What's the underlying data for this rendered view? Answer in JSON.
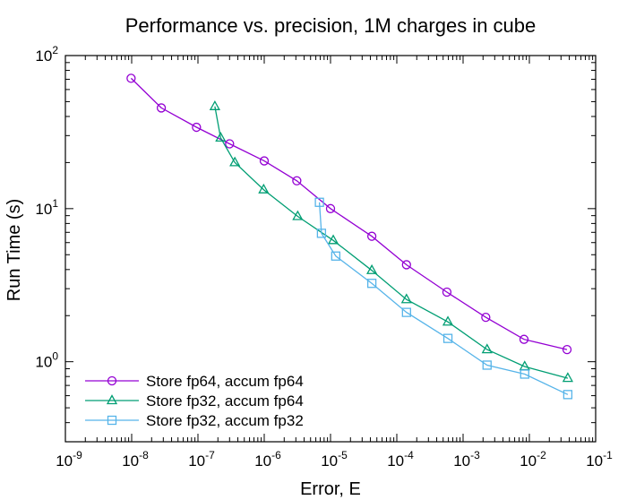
{
  "chart_data": {
    "type": "line",
    "title": "Performance vs. precision, 1M charges in cube",
    "xlabel": "Error, E",
    "ylabel": "Run Time (s)",
    "xscale": "log",
    "yscale": "log",
    "xlim": [
      1e-09,
      0.1
    ],
    "ylim": [
      0.3,
      100
    ],
    "x_ticks": [
      {
        "value": 1e-09,
        "base": "10",
        "exp": "-9"
      },
      {
        "value": 1e-08,
        "base": "10",
        "exp": "-8"
      },
      {
        "value": 1e-07,
        "base": "10",
        "exp": "-7"
      },
      {
        "value": 1e-06,
        "base": "10",
        "exp": "-6"
      },
      {
        "value": 1e-05,
        "base": "10",
        "exp": "-5"
      },
      {
        "value": 0.0001,
        "base": "10",
        "exp": "-4"
      },
      {
        "value": 0.001,
        "base": "10",
        "exp": "-3"
      },
      {
        "value": 0.01,
        "base": "10",
        "exp": "-2"
      },
      {
        "value": 0.1,
        "base": "10",
        "exp": "-1"
      }
    ],
    "y_ticks": [
      {
        "value": 1,
        "base": "10",
        "exp": "0"
      },
      {
        "value": 10,
        "base": "10",
        "exp": "1"
      },
      {
        "value": 100,
        "base": "10",
        "exp": "2"
      }
    ],
    "grid": false,
    "legend_position": "bottom-left",
    "series": [
      {
        "name": "Store fp64, accum fp64",
        "color": "#9400d3",
        "marker": "circle",
        "x": [
          9.8e-09,
          2.8e-08,
          9.5e-08,
          3e-07,
          1e-06,
          3.1e-06,
          1e-05,
          4.2e-05,
          0.00014,
          0.00057,
          0.0022,
          0.0083,
          0.037
        ],
        "y": [
          71,
          45.5,
          34,
          26.5,
          20.5,
          15.2,
          10,
          6.6,
          4.3,
          2.85,
          1.95,
          1.4,
          1.2
        ]
      },
      {
        "name": "Store fp32, accum fp64",
        "color": "#009e73",
        "marker": "triangle",
        "x": [
          1.8e-07,
          2.2e-07,
          3.6e-07,
          9.8e-07,
          3.2e-06,
          1.1e-05,
          4.2e-05,
          0.00014,
          0.00059,
          0.0023,
          0.0085,
          0.038
        ],
        "y": [
          46.5,
          29,
          20,
          13.3,
          8.9,
          6.2,
          3.95,
          2.55,
          1.82,
          1.2,
          0.93,
          0.78
        ]
      },
      {
        "name": "Store fp32, accum fp32",
        "color": "#56b4e9",
        "marker": "square",
        "x": [
          6.8e-06,
          7.3e-06,
          1.2e-05,
          4.2e-05,
          0.00014,
          0.00059,
          0.0023,
          0.0085,
          0.038
        ],
        "y": [
          11,
          6.9,
          4.9,
          3.25,
          2.1,
          1.42,
          0.95,
          0.83,
          0.61
        ]
      }
    ]
  }
}
